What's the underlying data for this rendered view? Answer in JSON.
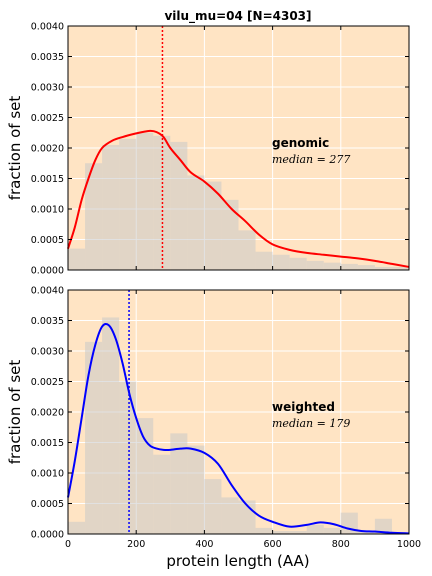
{
  "figure": {
    "title": "vilu_mu=04 [N=4303]",
    "xlabel": "protein length (AA)",
    "background": "#ffe4c4",
    "grid_color": "#ffffff"
  },
  "chart_data": [
    {
      "type": "area",
      "title": "vilu_mu=04 [N=4303]",
      "xlabel": "",
      "ylabel": "fraction of set",
      "xlim": [
        0,
        1000
      ],
      "ylim": [
        0,
        0.004
      ],
      "yticks": [
        "0.0000",
        "0.0005",
        "0.0010",
        "0.0015",
        "0.0020",
        "0.0025",
        "0.0030",
        "0.0035",
        "0.0040"
      ],
      "xticks": [],
      "grid": true,
      "annotation": {
        "label": "genomic",
        "median_text": "median = 277",
        "x": 600,
        "y": 0.00205
      },
      "median": 277,
      "median_color": "#ff0000",
      "curve_color": "#ff0000",
      "bar_color": "#c9c9c9",
      "histogram": {
        "bin_width": 50,
        "edges_start": 0,
        "values": [
          0.00035,
          0.00175,
          0.00205,
          0.00215,
          0.00225,
          0.0022,
          0.0021,
          0.00155,
          0.00145,
          0.00115,
          0.00065,
          0.0003,
          0.00025,
          0.0002,
          0.00015,
          0.00012,
          0.0001,
          8e-05,
          5e-05,
          5e-05
        ]
      },
      "curve": {
        "x": [
          0,
          20,
          40,
          60,
          80,
          100,
          130,
          160,
          200,
          240,
          260,
          280,
          300,
          330,
          360,
          400,
          440,
          480,
          520,
          560,
          600,
          650,
          700,
          750,
          800,
          850,
          900,
          950,
          1000
        ],
        "y": [
          0.00035,
          0.0007,
          0.00115,
          0.0015,
          0.0018,
          0.002,
          0.00212,
          0.00218,
          0.00224,
          0.00228,
          0.00226,
          0.00218,
          0.002,
          0.0018,
          0.0016,
          0.00145,
          0.00125,
          0.001,
          0.0008,
          0.00058,
          0.00042,
          0.00033,
          0.00028,
          0.00025,
          0.00022,
          0.00019,
          0.00015,
          0.0001,
          5e-05
        ]
      }
    },
    {
      "type": "area",
      "title": "",
      "xlabel": "protein length (AA)",
      "ylabel": "fraction of set",
      "xlim": [
        0,
        1000
      ],
      "ylim": [
        0,
        0.004
      ],
      "yticks": [
        "0.0000",
        "0.0005",
        "0.0010",
        "0.0015",
        "0.0020",
        "0.0025",
        "0.0030",
        "0.0035",
        "0.0040"
      ],
      "xticks": [
        "0",
        "200",
        "400",
        "600",
        "800",
        "1000"
      ],
      "grid": true,
      "annotation": {
        "label": "weighted",
        "median_text": "median = 179",
        "x": 600,
        "y": 0.00205
      },
      "median": 179,
      "median_color": "#0000ff",
      "curve_color": "#0000ff",
      "bar_color": "#c9c9c9",
      "histogram": {
        "bin_width": 50,
        "edges_start": 0,
        "values": [
          0.0002,
          0.00315,
          0.00355,
          0.0025,
          0.0019,
          0.0013,
          0.00165,
          0.00145,
          0.0009,
          0.0006,
          0.00055,
          0.0001,
          5e-05,
          5e-05,
          0.00015,
          0.0001,
          0.00035,
          5e-05,
          0.00025,
          0.0
        ]
      },
      "curve": {
        "x": [
          0,
          20,
          40,
          60,
          80,
          100,
          120,
          140,
          160,
          180,
          200,
          220,
          240,
          260,
          280,
          300,
          330,
          360,
          400,
          440,
          480,
          520,
          560,
          600,
          650,
          700,
          740,
          780,
          820,
          860,
          900,
          950,
          1000
        ],
        "y": [
          0.0006,
          0.0012,
          0.0019,
          0.0026,
          0.0031,
          0.0034,
          0.00342,
          0.0032,
          0.0028,
          0.0023,
          0.0019,
          0.0016,
          0.00145,
          0.0014,
          0.00138,
          0.00138,
          0.0014,
          0.0014,
          0.00133,
          0.00115,
          0.0008,
          0.0005,
          0.0003,
          0.0002,
          0.00012,
          0.00015,
          0.00019,
          0.00016,
          9e-05,
          5e-05,
          4e-05,
          2e-05,
          1e-05
        ]
      }
    }
  ]
}
